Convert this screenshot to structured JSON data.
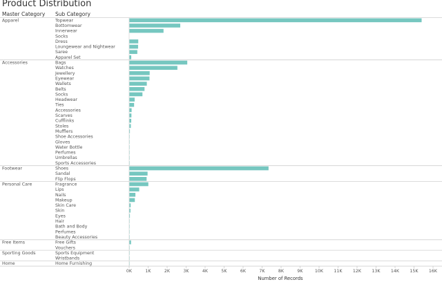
{
  "chart_data": {
    "type": "bar",
    "orientation": "horizontal",
    "title": "Product Distribution",
    "row_headers": [
      "Master Category",
      "Sub Category"
    ],
    "xlabel": "Number of Records",
    "xlim": [
      0,
      16000
    ],
    "xticks": [
      "0K",
      "1K",
      "2K",
      "3K",
      "4K",
      "5K",
      "6K",
      "7K",
      "8K",
      "9K",
      "10K",
      "11K",
      "12K",
      "13K",
      "14K",
      "15K",
      "16K"
    ],
    "bar_color": "#76c7c0",
    "groups": [
      {
        "name": "Apparel",
        "items": [
          {
            "label": "Topwear",
            "value": 15400
          },
          {
            "label": "Bottomwear",
            "value": 2690
          },
          {
            "label": "Innerwear",
            "value": 1810
          },
          {
            "label": "Socks",
            "value": 0
          },
          {
            "label": "Dress",
            "value": 480
          },
          {
            "label": "Loungewear and Nightwear",
            "value": 470
          },
          {
            "label": "Saree",
            "value": 430
          },
          {
            "label": "Apparel Set",
            "value": 110
          }
        ]
      },
      {
        "name": "Accessories",
        "items": [
          {
            "label": "Bags",
            "value": 3060
          },
          {
            "label": "Watches",
            "value": 2540
          },
          {
            "label": "Jewellery",
            "value": 1080
          },
          {
            "label": "Eyewear",
            "value": 1070
          },
          {
            "label": "Wallets",
            "value": 930
          },
          {
            "label": "Belts",
            "value": 810
          },
          {
            "label": "Socks",
            "value": 700
          },
          {
            "label": "Headwear",
            "value": 290
          },
          {
            "label": "Ties",
            "value": 260
          },
          {
            "label": "Accessories",
            "value": 130
          },
          {
            "label": "Scarves",
            "value": 120
          },
          {
            "label": "Cufflinks",
            "value": 110
          },
          {
            "label": "Stoles",
            "value": 90
          },
          {
            "label": "Mufflers",
            "value": 40
          },
          {
            "label": "Shoe Accessories",
            "value": 20
          },
          {
            "label": "Gloves",
            "value": 20
          },
          {
            "label": "Water Bottle",
            "value": 7
          },
          {
            "label": "Perfumes",
            "value": 6
          },
          {
            "label": "Umbrellas",
            "value": 6
          },
          {
            "label": "Sports Accessories",
            "value": 3
          }
        ]
      },
      {
        "name": "Footwear",
        "items": [
          {
            "label": "Shoes",
            "value": 7340
          },
          {
            "label": "Sandal",
            "value": 970
          },
          {
            "label": "Flip Flops",
            "value": 920
          }
        ]
      },
      {
        "name": "Personal Care",
        "items": [
          {
            "label": "Fragrance",
            "value": 1010
          },
          {
            "label": "Lips",
            "value": 530
          },
          {
            "label": "Nails",
            "value": 330
          },
          {
            "label": "Makeup",
            "value": 300
          },
          {
            "label": "Skin Care",
            "value": 80
          },
          {
            "label": "Skin",
            "value": 70
          },
          {
            "label": "Eyes",
            "value": 40
          },
          {
            "label": "Hair",
            "value": 20
          },
          {
            "label": "Bath and Body",
            "value": 10
          },
          {
            "label": "Perfumes",
            "value": 5
          },
          {
            "label": "Beauty Accessories",
            "value": 4
          }
        ]
      },
      {
        "name": "Free Items",
        "items": [
          {
            "label": "Free Gifts",
            "value": 100
          },
          {
            "label": "Vouchers",
            "value": 3
          }
        ]
      },
      {
        "name": "Sporting Goods",
        "items": [
          {
            "label": "Sports Equipment",
            "value": 20
          },
          {
            "label": "Wristbands",
            "value": 7
          }
        ]
      },
      {
        "name": "Home",
        "items": [
          {
            "label": "Home Furnishing",
            "value": 1
          }
        ]
      }
    ]
  }
}
